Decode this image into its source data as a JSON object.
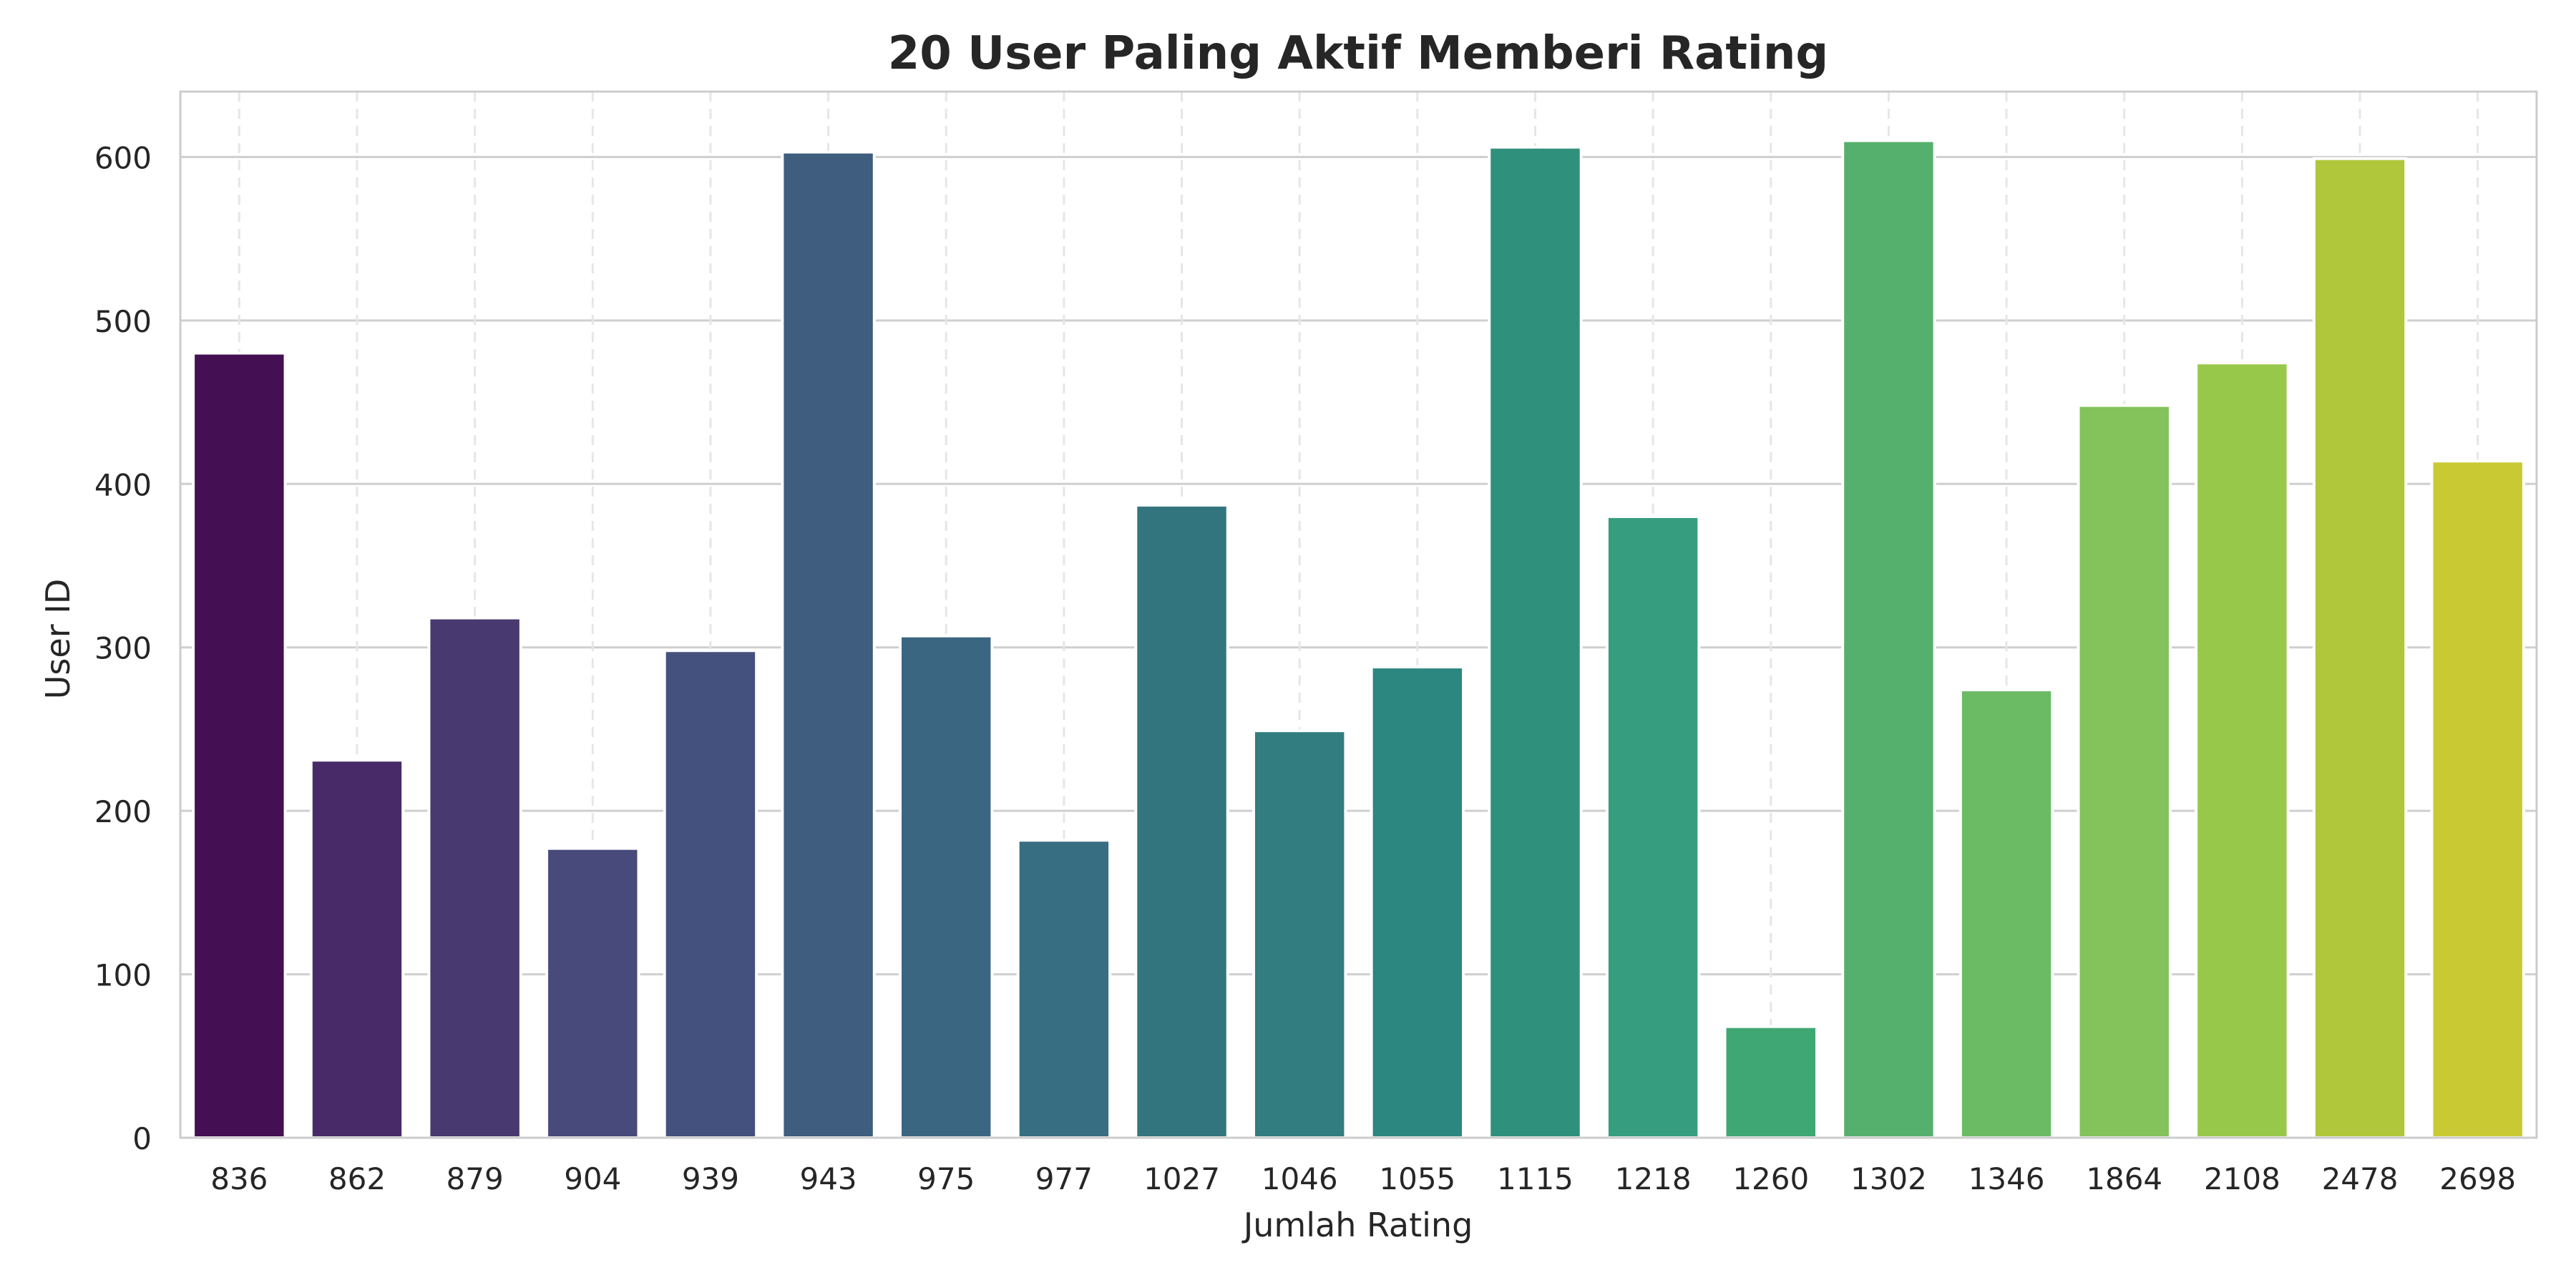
{
  "chart_data": {
    "type": "bar",
    "title": "20 User Paling Aktif Memberi Rating",
    "xlabel": "Jumlah Rating",
    "ylabel": "User ID",
    "categories": [
      "836",
      "862",
      "879",
      "904",
      "939",
      "943",
      "975",
      "977",
      "1027",
      "1046",
      "1055",
      "1115",
      "1218",
      "1260",
      "1302",
      "1346",
      "1864",
      "2108",
      "2478",
      "2698"
    ],
    "values": [
      480,
      231,
      318,
      177,
      298,
      603,
      307,
      182,
      387,
      249,
      288,
      606,
      380,
      68,
      610,
      274,
      448,
      474,
      599,
      414
    ],
    "ylim": [
      0,
      640
    ],
    "yticks": [
      0,
      100,
      200,
      300,
      400,
      500,
      600
    ],
    "grid": true,
    "colors": [
      "#440f53",
      "#482a68",
      "#483a70",
      "#474a7a",
      "#44507d",
      "#3e5d7f",
      "#3b6681",
      "#376e82",
      "#33757e",
      "#317d80",
      "#2b8780",
      "#2f907c",
      "#369e7f",
      "#3ea773",
      "#55b06d",
      "#6bbb65",
      "#84c25c",
      "#98c84a",
      "#b0c73b",
      "#c9ca33"
    ]
  }
}
